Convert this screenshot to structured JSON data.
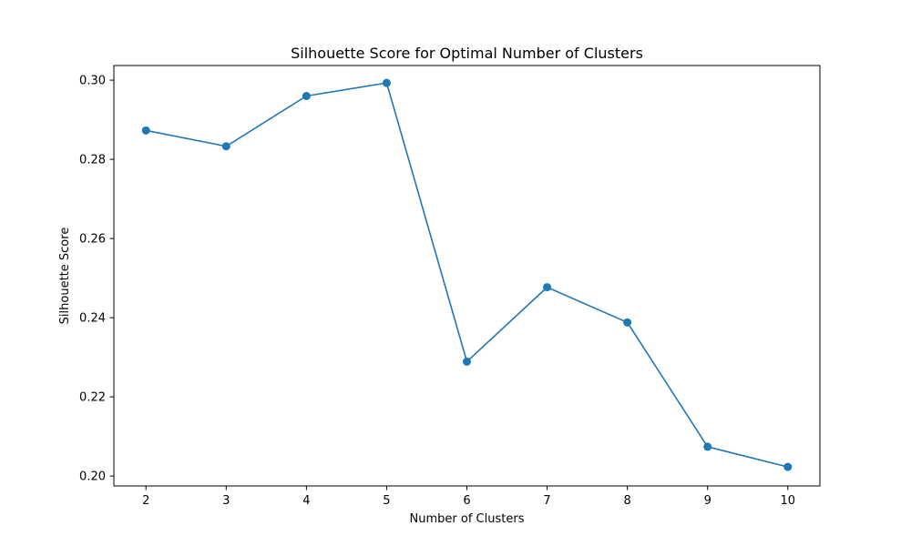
{
  "chart_data": {
    "type": "line",
    "title": "Silhouette Score for Optimal Number of Clusters",
    "xlabel": "Number of Clusters",
    "ylabel": "Silhouette Score",
    "x": [
      2,
      3,
      4,
      5,
      6,
      7,
      8,
      9,
      10
    ],
    "series": [
      {
        "values": [
          0.2873,
          0.2833,
          0.296,
          0.2993,
          0.2289,
          0.2477,
          0.2388,
          0.2074,
          0.2023
        ],
        "color": "#1f77b4",
        "marker": "circle"
      }
    ],
    "xlim": [
      1.6,
      10.4
    ],
    "ylim": [
      0.1975,
      0.3037
    ],
    "x_ticks": [
      2,
      3,
      4,
      5,
      6,
      7,
      8,
      9,
      10
    ],
    "x_tick_labels": [
      "2",
      "3",
      "4",
      "5",
      "6",
      "7",
      "8",
      "9",
      "10"
    ],
    "y_ticks": [
      0.2,
      0.22,
      0.24,
      0.26,
      0.28,
      0.3
    ],
    "y_tick_labels": [
      "0.20",
      "0.22",
      "0.24",
      "0.26",
      "0.28",
      "0.30"
    ],
    "grid": false,
    "legend": "none"
  }
}
